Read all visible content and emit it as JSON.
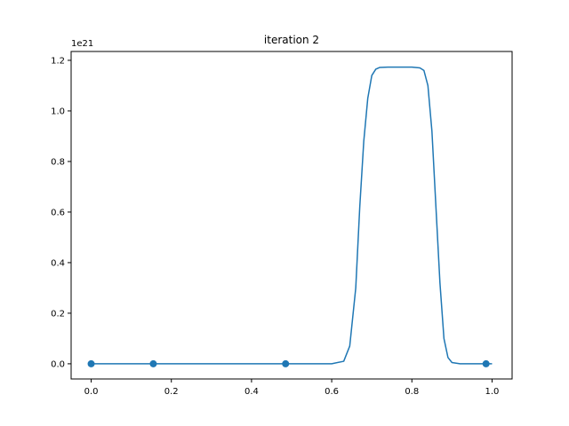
{
  "chart_data": {
    "type": "line",
    "title": "iteration 2",
    "xlabel": "",
    "ylabel": "",
    "y_scale_label": "1e21",
    "xlim": [
      -0.05,
      1.05
    ],
    "ylim": [
      -0.06,
      1.235
    ],
    "x_ticks": [
      0.0,
      0.2,
      0.4,
      0.6,
      0.8,
      1.0
    ],
    "x_tick_labels": [
      "0.0",
      "0.2",
      "0.4",
      "0.6",
      "0.8",
      "1.0"
    ],
    "y_ticks": [
      0.0,
      0.2,
      0.4,
      0.6,
      0.8,
      1.0,
      1.2
    ],
    "y_tick_labels": [
      "0.0",
      "0.2",
      "0.4",
      "0.6",
      "0.8",
      "1.0",
      "1.2"
    ],
    "grid": false,
    "line_color": "#1f77b4",
    "series": [
      {
        "x": [
          0.0,
          0.1,
          0.2,
          0.3,
          0.4,
          0.5,
          0.6,
          0.63,
          0.645,
          0.66,
          0.67,
          0.68,
          0.69,
          0.7,
          0.71,
          0.72,
          0.74,
          0.76,
          0.78,
          0.8,
          0.82,
          0.83,
          0.84,
          0.85,
          0.86,
          0.87,
          0.88,
          0.89,
          0.9,
          0.92,
          0.95,
          1.0
        ],
        "y": [
          0.0,
          0.0,
          0.0,
          0.0,
          0.0,
          0.0,
          0.0,
          0.01,
          0.07,
          0.3,
          0.62,
          0.88,
          1.05,
          1.14,
          1.165,
          1.172,
          1.173,
          1.173,
          1.173,
          1.173,
          1.17,
          1.16,
          1.1,
          0.92,
          0.62,
          0.32,
          0.1,
          0.025,
          0.005,
          0.0,
          0.0,
          0.0
        ]
      },
      {
        "type": "scatter",
        "x": [
          0.0,
          0.155,
          0.485,
          0.985
        ],
        "y": [
          0.0,
          0.0,
          0.0,
          0.0
        ]
      }
    ]
  }
}
